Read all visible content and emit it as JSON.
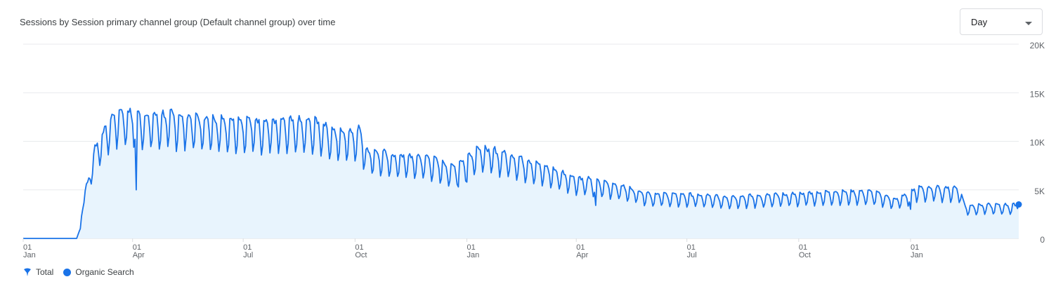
{
  "title": "Sessions by Session primary channel group (Default channel group) over time",
  "granularity": {
    "selected": "Day"
  },
  "legend": [
    {
      "label": "Total",
      "icon": "pin-icon"
    },
    {
      "label": "Organic Search",
      "icon": "dot-icon"
    }
  ],
  "colors": {
    "line": "#1a73e8",
    "fill": "#e8f4fd",
    "grid": "#e8eaed",
    "axis": "#5f6368"
  },
  "chart_data": {
    "type": "area",
    "xlabel": "",
    "ylabel": "",
    "ylim": [
      0,
      20000
    ],
    "y_ticks": [
      {
        "value": 20000,
        "label": "20K"
      },
      {
        "value": 15000,
        "label": "15K"
      },
      {
        "value": 10000,
        "label": "10K"
      },
      {
        "value": 5000,
        "label": "5K"
      },
      {
        "value": 0,
        "label": "0"
      }
    ],
    "x_range": [
      "2021-01-01",
      "2023-03-31"
    ],
    "x_ticks": [
      {
        "date": "2021-01-01",
        "day": "01",
        "month": "Jan"
      },
      {
        "date": "2021-04-01",
        "day": "01",
        "month": "Apr"
      },
      {
        "date": "2021-07-01",
        "day": "01",
        "month": "Jul"
      },
      {
        "date": "2021-10-01",
        "day": "01",
        "month": "Oct"
      },
      {
        "date": "2022-01-01",
        "day": "01",
        "month": "Jan"
      },
      {
        "date": "2022-04-01",
        "day": "01",
        "month": "Apr"
      },
      {
        "date": "2022-07-01",
        "day": "01",
        "month": "Jul"
      },
      {
        "date": "2022-10-01",
        "day": "01",
        "month": "Oct"
      },
      {
        "date": "2023-01-01",
        "day": "01",
        "month": "Jan"
      }
    ],
    "legend_position": "bottom-left",
    "grid": true,
    "series": [
      {
        "name": "Organic Search",
        "weekly_pattern": [
          1.06,
          1.07,
          1.05,
          1.03,
          0.93,
          0.76,
          0.84
        ],
        "points": [
          [
            "2021-01-01",
            0
          ],
          [
            "2021-02-14",
            0
          ],
          [
            "2021-02-17",
            1000
          ],
          [
            "2021-02-19",
            4000
          ],
          [
            "2021-02-23",
            5500
          ],
          [
            "2021-03-01",
            9000
          ],
          [
            "2021-03-08",
            10500
          ],
          [
            "2021-03-15",
            12000
          ],
          [
            "2021-03-22",
            12600
          ],
          [
            "2021-04-01",
            12400
          ],
          [
            "2021-04-15",
            12100
          ],
          [
            "2021-05-01",
            12200
          ],
          [
            "2021-06-01",
            11800
          ],
          [
            "2021-07-01",
            11700
          ],
          [
            "2021-08-01",
            11500
          ],
          [
            "2021-09-01",
            11500
          ],
          [
            "2021-09-15",
            10500
          ],
          [
            "2021-10-01",
            10600
          ],
          [
            "2021-10-05",
            10800
          ],
          [
            "2021-10-10",
            8800
          ],
          [
            "2021-11-01",
            8200
          ],
          [
            "2021-12-01",
            8000
          ],
          [
            "2021-12-20",
            7000
          ],
          [
            "2022-01-01",
            8000
          ],
          [
            "2022-01-10",
            9000
          ],
          [
            "2022-02-01",
            8400
          ],
          [
            "2022-03-01",
            7300
          ],
          [
            "2022-04-01",
            6000
          ],
          [
            "2022-05-01",
            5400
          ],
          [
            "2022-06-01",
            4400
          ],
          [
            "2022-07-01",
            4300
          ],
          [
            "2022-08-01",
            4100
          ],
          [
            "2022-09-01",
            4200
          ],
          [
            "2022-10-01",
            4400
          ],
          [
            "2022-11-01",
            4600
          ],
          [
            "2022-12-01",
            4600
          ],
          [
            "2022-12-20",
            3900
          ],
          [
            "2023-01-01",
            4500
          ],
          [
            "2023-01-05",
            5000
          ],
          [
            "2023-02-10",
            5000
          ],
          [
            "2023-02-15",
            3200
          ],
          [
            "2023-03-01",
            3300
          ],
          [
            "2023-03-31",
            3300
          ]
        ],
        "dips": [
          [
            "2021-04-04",
            5000
          ],
          [
            "2021-12-25",
            5300
          ],
          [
            "2022-01-01",
            5800
          ],
          [
            "2022-04-17",
            3400
          ],
          [
            "2023-01-01",
            3000
          ]
        ],
        "last_value": 3500
      }
    ]
  }
}
